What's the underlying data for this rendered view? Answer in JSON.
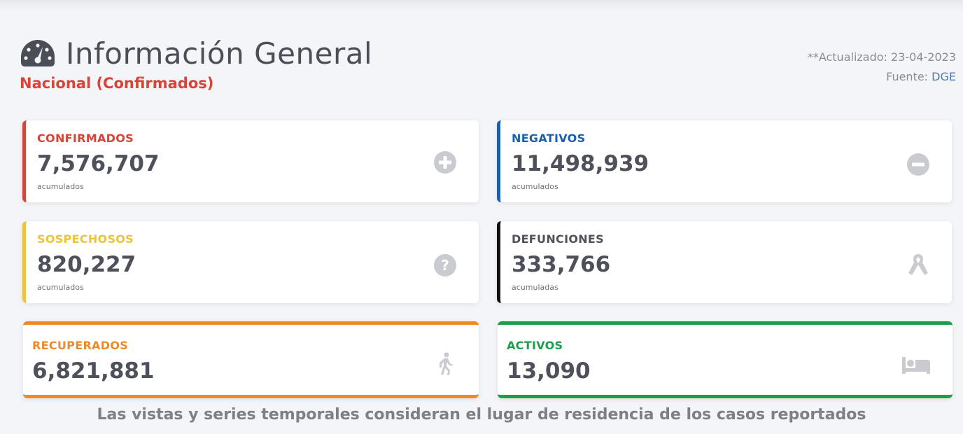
{
  "header": {
    "title": "Información General",
    "subtitle": "Nacional (Confirmados)",
    "updated": "**Actualizado: 23-04-2023",
    "source_prefix": "Fuente:",
    "source_link": "DGE"
  },
  "cards": {
    "confirmados": {
      "label": "CONFIRMADOS",
      "value": "7,576,707",
      "unit": "acumulados",
      "color": "#d7443a",
      "icon": "plus-circle-icon"
    },
    "negativos": {
      "label": "NEGATIVOS",
      "value": "11,498,939",
      "unit": "acumulados",
      "color": "#1c5fad",
      "icon": "minus-circle-icon"
    },
    "sospechosos": {
      "label": "SOSPECHOSOS",
      "value": "820,227",
      "unit": "acumulados",
      "color": "#f0c13a",
      "icon": "question-circle-icon"
    },
    "defunciones": {
      "label": "DEFUNCIONES",
      "value": "333,766",
      "unit": "acumuladas",
      "color": "#111111",
      "icon": "ribbon-icon"
    },
    "recuperados": {
      "label": "RECUPERADOS",
      "value": "6,821,881",
      "color": "#ee8a2a",
      "icon": "walking-person-icon"
    },
    "activos": {
      "label": "ACTIVOS",
      "value": "13,090",
      "color": "#1e9e4a",
      "icon": "bed-icon"
    }
  },
  "footer": {
    "note": "Las vistas y series temporales consideran el lugar de residencia de los casos reportados"
  }
}
